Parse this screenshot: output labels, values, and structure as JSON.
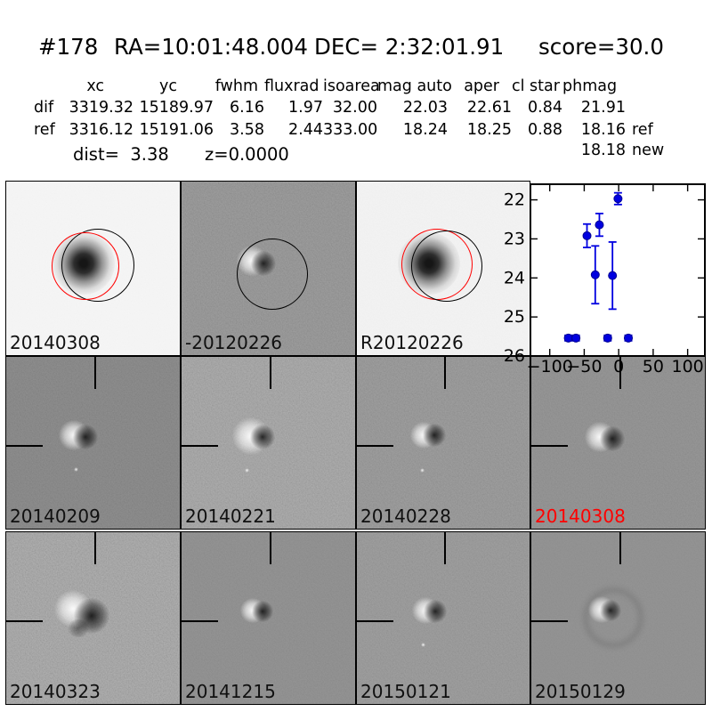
{
  "header": {
    "id": "#178",
    "ra": "RA=10:01:48.004",
    "dec": "DEC= 2:32:01.91",
    "score": "score=30.0"
  },
  "photometry_table": {
    "columns": [
      "xc",
      "yc",
      "fwhm",
      "fluxrad",
      "isoarea",
      "mag auto",
      "aper",
      "cl star",
      "phmag"
    ],
    "rows": [
      {
        "label": "dif",
        "xc": "3319.32",
        "yc": "15189.97",
        "fwhm": "6.16",
        "fluxrad": "1.97",
        "isoarea": "32.00",
        "mag_auto": "22.03",
        "aper": "22.61",
        "cl_star": "0.84",
        "phmag": "21.91",
        "suffix": ""
      },
      {
        "label": "ref",
        "xc": "3316.12",
        "yc": "15191.06",
        "fwhm": "3.58",
        "fluxrad": "2.44",
        "isoarea": "333.00",
        "mag_auto": "18.24",
        "aper": "18.25",
        "cl_star": "0.88",
        "phmag": "18.16",
        "suffix": "ref"
      },
      {
        "label": "",
        "xc": "",
        "yc": "",
        "fwhm": "",
        "fluxrad": "",
        "isoarea": "",
        "mag_auto": "",
        "aper": "",
        "cl_star": "",
        "phmag": "18.18",
        "suffix": "new"
      }
    ],
    "dist_label": "dist=  3.38",
    "z_label": "z=0.0000"
  },
  "stamps": [
    {
      "label": "20140308",
      "label_color": "#101010"
    },
    {
      "label": "-20120226",
      "label_color": "#101010"
    },
    {
      "label": "R20120226",
      "label_color": "#101010"
    },
    {
      "label": "20140209",
      "label_color": "#101010"
    },
    {
      "label": "20140221",
      "label_color": "#101010"
    },
    {
      "label": "20140228",
      "label_color": "#101010"
    },
    {
      "label": "20140308",
      "label_color": "#ff0000"
    },
    {
      "label": "20140323",
      "label_color": "#101010"
    },
    {
      "label": "20141215",
      "label_color": "#101010"
    },
    {
      "label": "20150121",
      "label_color": "#101010"
    },
    {
      "label": "20150129",
      "label_color": "#101010"
    }
  ],
  "chart_data": {
    "type": "scatter",
    "title": "",
    "xlabel": "",
    "ylabel": "",
    "xlim": [
      -128,
      125
    ],
    "ylim": [
      21.6,
      26.0
    ],
    "y_inverted": true,
    "grid": false,
    "xticks": [
      -100,
      -50,
      0,
      50,
      100
    ],
    "yticks": [
      22,
      23,
      24,
      25,
      26
    ],
    "marker_color": "#0000e0",
    "marker_edge_color": "#000090",
    "points": [
      {
        "x": -73,
        "y": 25.54,
        "yerr": 0.07
      },
      {
        "x": -62,
        "y": 25.54,
        "yerr": 0.07
      },
      {
        "x": -46,
        "y": 22.92,
        "yerr": 0.3
      },
      {
        "x": -34,
        "y": 23.92,
        "yerr": 0.74
      },
      {
        "x": -28,
        "y": 22.64,
        "yerr": 0.29
      },
      {
        "x": -16,
        "y": 25.54,
        "yerr": 0.07
      },
      {
        "x": -9,
        "y": 23.94,
        "yerr": 0.86
      },
      {
        "x": -1,
        "y": 21.97,
        "yerr": 0.15
      },
      {
        "x": 14,
        "y": 25.54,
        "yerr": 0.07
      }
    ]
  }
}
